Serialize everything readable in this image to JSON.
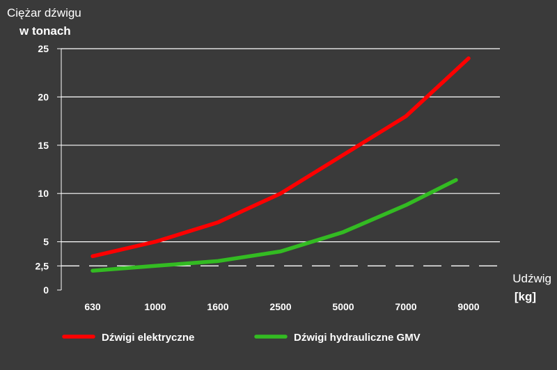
{
  "chart_data": {
    "type": "line",
    "ylabel_line1": "Ciężar dźwigu",
    "ylabel_line2": "w tonach",
    "xlabel_line1": "Udźwig",
    "xlabel_line2": "[kg]",
    "categories": [
      "630",
      "1000",
      "1600",
      "2500",
      "5000",
      "7000",
      "9000"
    ],
    "yticks": [
      0,
      2.5,
      5,
      10,
      15,
      20,
      25
    ],
    "ytick_labels": [
      "0",
      "2,5",
      "5",
      "10",
      "15",
      "20",
      "25"
    ],
    "ylim": [
      0,
      25
    ],
    "grid": true,
    "dashed_reference": 2.5,
    "legend_position": "bottom",
    "series": [
      {
        "name": "Dźwigi elektryczne",
        "color": "#ff0000",
        "x": [
          0,
          1,
          2,
          3,
          4,
          5,
          6
        ],
        "values": [
          3.5,
          5,
          7,
          10,
          14,
          18,
          24
        ]
      },
      {
        "name": "Dźwigi hydrauliczne GMV",
        "color": "#33bb22",
        "x": [
          0,
          1,
          2,
          3,
          4,
          5,
          5.8
        ],
        "values": [
          2,
          2.5,
          3,
          4,
          6,
          8.8,
          11.4
        ]
      }
    ]
  }
}
